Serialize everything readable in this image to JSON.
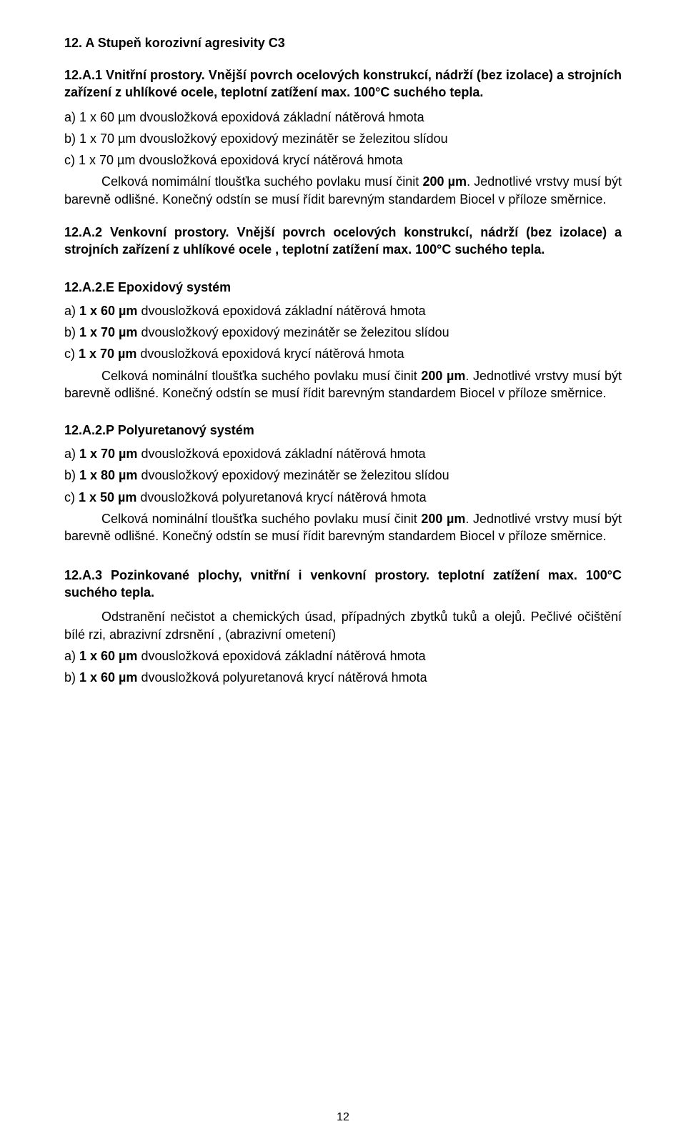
{
  "s12A": {
    "title": "12. A  Stupeň korozivní agresivity C3",
    "s1": {
      "heading_bold": "12.A.1 Vnitřní prostory.   Vnější povrch ocelových konstrukcí, nádrží (bez izolace) a strojních zařízení z uhlíkové ocele, teplotní zatížení max. 100°C suchého tepla.",
      "a_pre": "a) 1 x 60 ",
      "a_unit": "µm",
      "a_post": "  dvousložková epoxidová základní nátěrová hmota",
      "b_pre": "b) 1 x 70 ",
      "b_unit": "µm",
      "b_post": "  dvousložkový epoxidový mezinátěr se železitou slídou",
      "c_pre": "c) 1 x 70 ",
      "c_unit": "µm",
      "c_post": "  dvousložková epoxidová krycí nátěrová hmota",
      "note_pre": "Celková nomimální tloušťka suchého povlaku musí činit  ",
      "note_bold": "200 µm",
      "note_post": ". Jednotlivé vrstvy musí být barevně odlišné. Konečný odstín se musí řídit barevným standardem Biocel v příloze směrnice."
    },
    "s2": {
      "heading_bold": "12.A.2 Venkovní prostory. Vnější povrch ocelových konstrukcí, nádrží (bez izolace) a strojních zařízení z uhlíkové ocele , teplotní zatížení max. 100°C suchého tepla."
    },
    "s2E": {
      "title": "12.A.2.E  Epoxidový systém",
      "a_pre": "a) ",
      "a_bold": "1 x 60  µm",
      "a_post": "  dvousložková epoxidová základní nátěrová hmota",
      "b_pre": "b) ",
      "b_bold": "1 x 70 µm",
      "b_post": "   dvousložkový epoxidový mezinátěr se železitou slídou",
      "c_pre": "c) ",
      "c_bold": "1 x 70 µm",
      "c_post": "   dvousložková epoxidová krycí nátěrová hmota",
      "note_pre": "Celková nominální tloušťka suchého povlaku musí činit  ",
      "note_bold": "200 µm",
      "note_post": ". Jednotlivé vrstvy musí být barevně odlišné. Konečný odstín se musí řídit barevným standardem Biocel v příloze směrnice."
    },
    "s2P": {
      "title": "12.A.2.P  Polyuretanový systém",
      "a_pre": "a) ",
      "a_bold": "1 x 70  µm",
      "a_post": "  dvousložková epoxidová základní nátěrová hmota",
      "b_pre": "b) ",
      "b_bold": "1 x 80 µm",
      "b_post": "   dvousložkový epoxidový mezinátěr se železitou slídou",
      "c_pre": "c) ",
      "c_bold": "1 x 50  µm",
      "c_post": "  dvousložková polyuretanová krycí nátěrová hmota",
      "note_pre": " Celková nominální tloušťka suchého povlaku musí činit ",
      "note_bold": "200 µm",
      "note_post": ". Jednotlivé vrstvy musí být barevně odlišné. Konečný odstín se musí řídit barevným standardem Biocel v příloze směrnice."
    },
    "s3": {
      "heading_bold": "12.A.3 Pozinkované plochy, vnitřní i venkovní prostory. teplotní zatížení max. 100°C suchého tepla.",
      "intro": "Odstranění nečistot a chemických úsad, případných zbytků tuků a olejů. Pečlivé očištění bílé rzi, abrazivní zdrsnění , (abrazivní ometení)",
      "a_pre": "a) ",
      "a_bold": "1 x  60 µm",
      "a_post": "  dvousložková epoxidová základní nátěrová hmota",
      "b_pre": "b) ",
      "b_bold": "1 x  60 µm",
      "b_post": "  dvousložková polyuretanová krycí nátěrová hmota"
    }
  },
  "pageNumber": "12"
}
